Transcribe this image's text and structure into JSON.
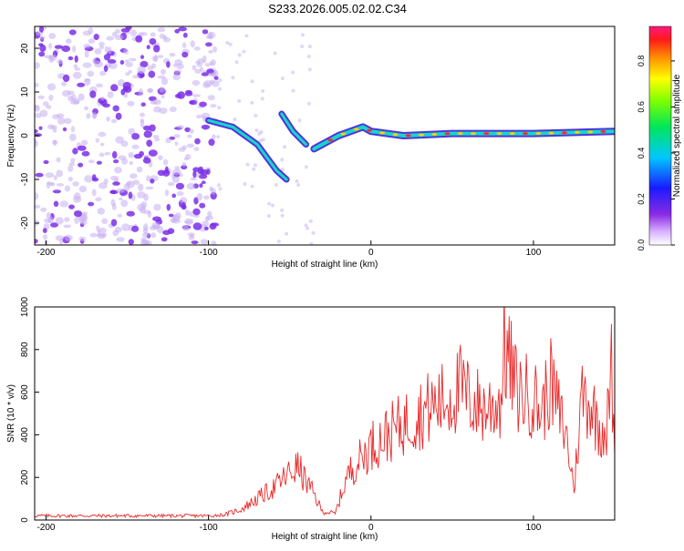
{
  "page_title": "S233.2026.005.02.02.C34",
  "colors": {
    "snr_line": "#e8292a",
    "spectro_blob": "#7b2fe8",
    "spectro_faint": "#c6aef3",
    "axis": "#000000"
  },
  "chart_data": [
    {
      "type": "heatmap",
      "title": "S233.2026.005.02.02.C34",
      "xlabel": "Height of straight line (km)",
      "ylabel": "Frequency (Hz)",
      "xlim": [
        -207,
        150
      ],
      "ylim": [
        -25,
        25
      ],
      "x_ticks": [
        -200,
        -100,
        0,
        100
      ],
      "x_tick_labels": [
        "-200",
        "-100",
        "0",
        "100"
      ],
      "y_ticks": [
        20,
        10,
        0,
        -10,
        -20
      ],
      "y_tick_labels": [
        "20",
        "10",
        "0",
        "-10",
        "-20"
      ],
      "colorbar": {
        "label": "Normalized spectral amplitude",
        "range": [
          0,
          0.95
        ],
        "ticks": [
          0,
          0.2,
          0.4,
          0.6,
          0.8
        ],
        "tick_labels": [
          "0.0",
          "0.2",
          "0.4",
          "0.6",
          "0.8"
        ],
        "colormap": "rainbow (white-violet-blue-cyan-green-yellow-red-magenta)"
      },
      "features": {
        "noise_region_x": [
          -207,
          -95
        ],
        "descending_track": [
          [
            -100,
            3.5
          ],
          [
            -85,
            2
          ],
          [
            -70,
            -2
          ],
          [
            -58,
            -8
          ],
          [
            -52,
            -10
          ]
        ],
        "second_track": [
          [
            -55,
            5
          ],
          [
            -48,
            1
          ],
          [
            -40,
            -2
          ]
        ],
        "main_trace": [
          [
            -35,
            -3
          ],
          [
            -20,
            0
          ],
          [
            -5,
            2
          ],
          [
            0,
            1
          ],
          [
            20,
            0
          ],
          [
            50,
            0.5
          ],
          [
            100,
            0.5
          ],
          [
            150,
            1
          ]
        ]
      }
    },
    {
      "type": "line",
      "xlabel": "Height of straight line (km)",
      "ylabel": "SNR (10 * v/v)",
      "xlim": [
        -207,
        150
      ],
      "ylim": [
        0,
        1000
      ],
      "x_ticks": [
        -200,
        -100,
        0,
        100
      ],
      "x_tick_labels": [
        "-200",
        "-100",
        "0",
        "100"
      ],
      "y_ticks": [
        0,
        200,
        400,
        600,
        800,
        1000
      ],
      "y_tick_labels": [
        "0",
        "200",
        "400",
        "600",
        "800",
        "1000"
      ],
      "series": [
        {
          "name": "SNR",
          "x": [
            -207,
            -150,
            -100,
            -90,
            -80,
            -70,
            -60,
            -50,
            -45,
            -40,
            -35,
            -30,
            -25,
            -22,
            -15,
            -10,
            -5,
            0,
            10,
            20,
            30,
            40,
            50,
            55,
            60,
            70,
            80,
            82,
            90,
            100,
            105,
            110,
            120,
            125,
            130,
            135,
            140,
            145,
            148,
            150
          ],
          "y": [
            20,
            20,
            20,
            25,
            50,
            100,
            150,
            220,
            250,
            180,
            120,
            40,
            35,
            30,
            200,
            260,
            300,
            350,
            400,
            450,
            500,
            540,
            580,
            620,
            570,
            520,
            560,
            820,
            600,
            580,
            500,
            650,
            400,
            150,
            600,
            550,
            450,
            420,
            700,
            300
          ]
        }
      ]
    }
  ]
}
